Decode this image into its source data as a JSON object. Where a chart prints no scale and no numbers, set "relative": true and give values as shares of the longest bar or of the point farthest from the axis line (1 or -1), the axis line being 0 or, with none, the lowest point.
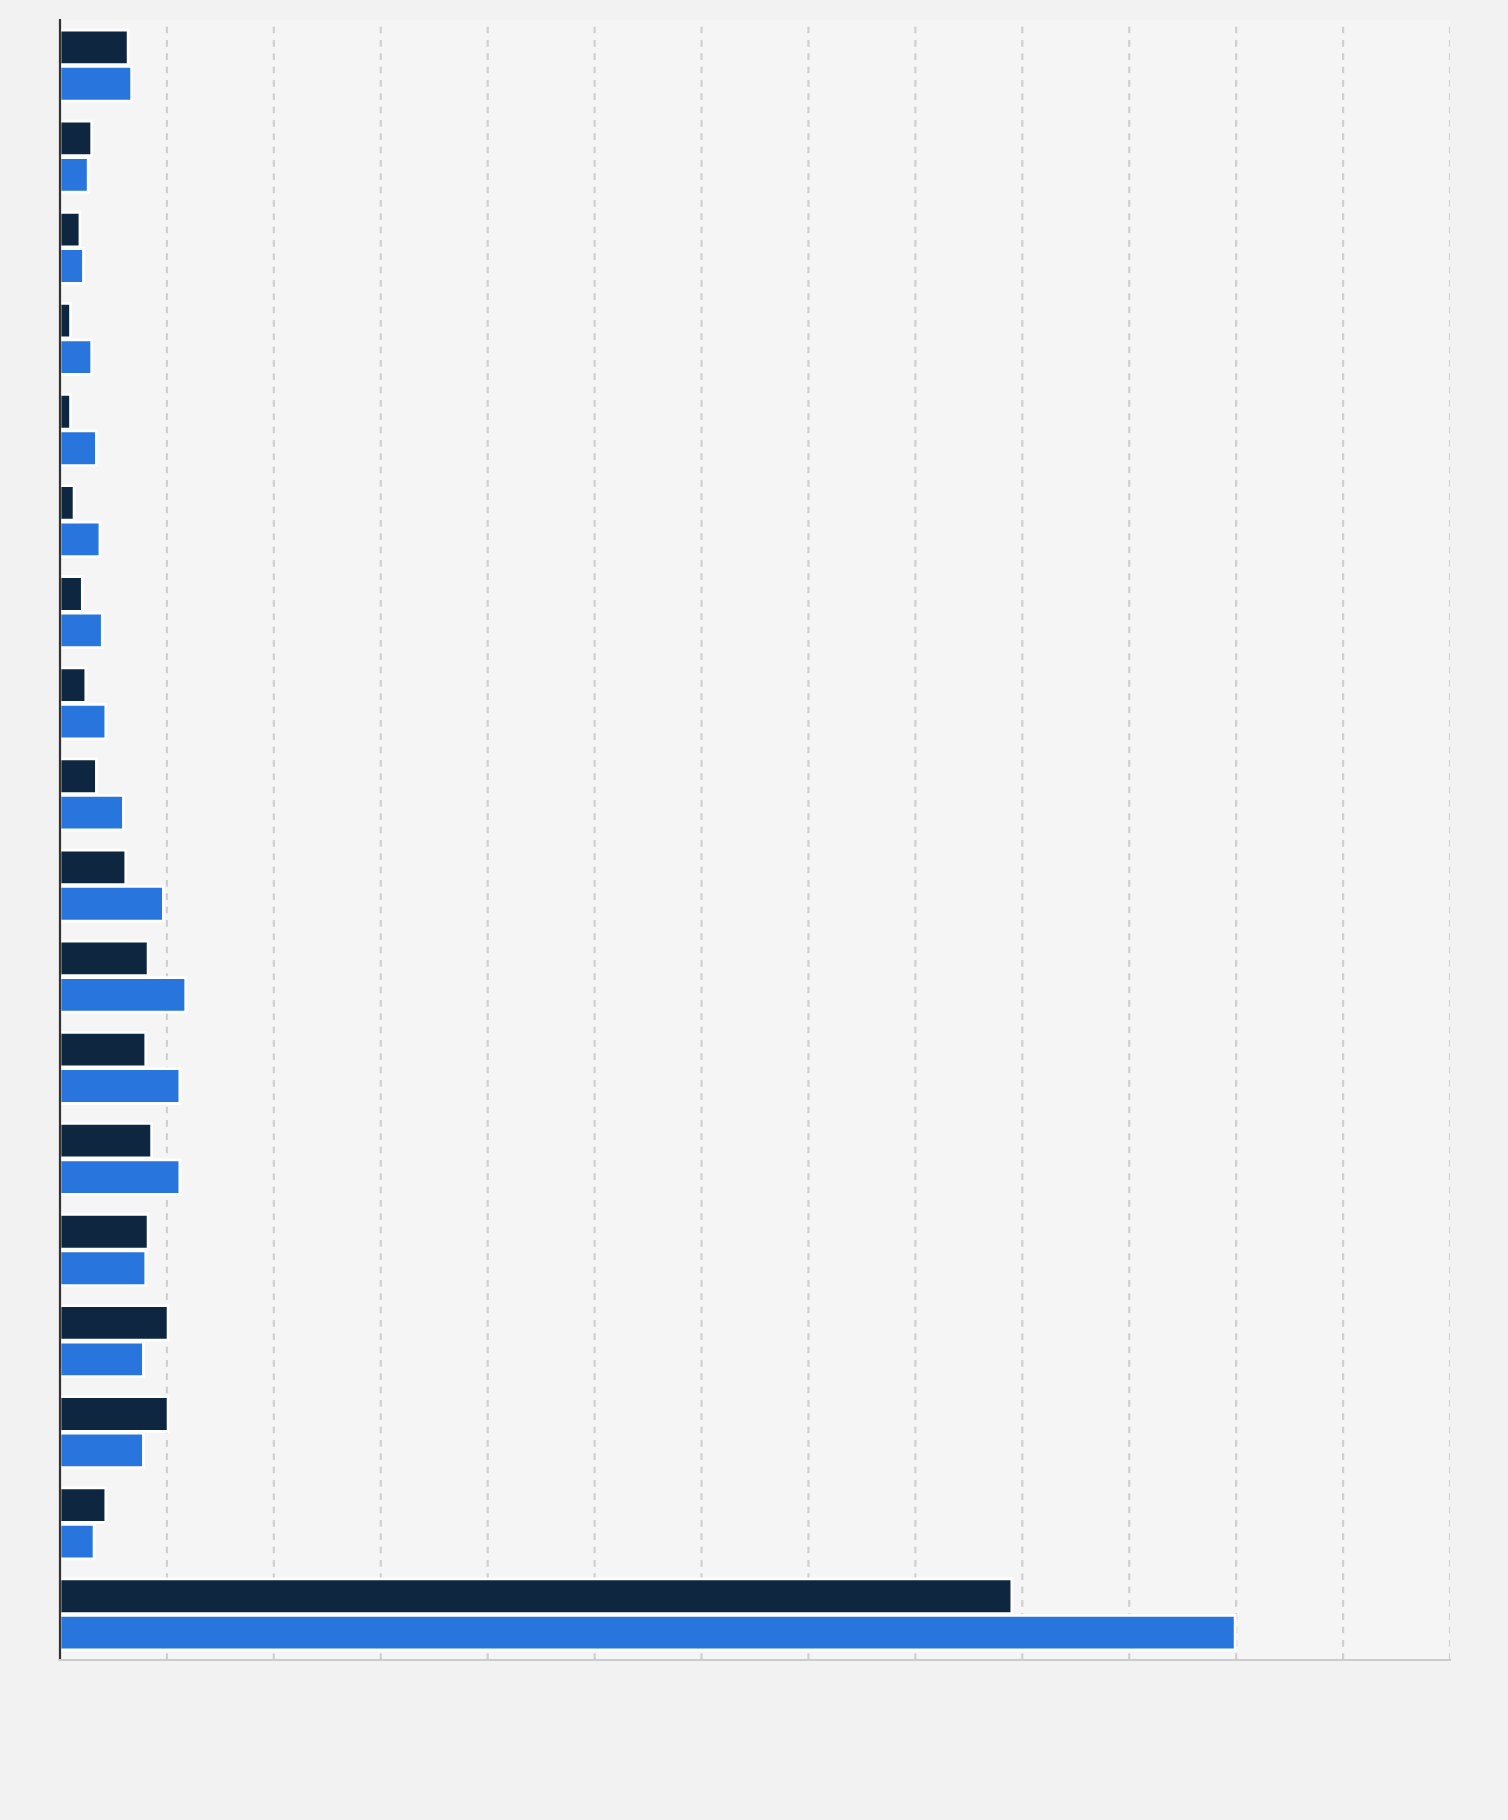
{
  "chart_data": {
    "type": "bar",
    "orientation": "horizontal",
    "relative": true,
    "tick_labels": false,
    "grid": "x",
    "categories": [
      null,
      null,
      null,
      null,
      null,
      null,
      null,
      null,
      null,
      null,
      null,
      null,
      null,
      null,
      null,
      null,
      null,
      null
    ],
    "series": [
      {
        "color": "#0f2640",
        "values": [
          0.058,
          0.027,
          0.017,
          0.009,
          0.009,
          0.012,
          0.019,
          0.022,
          0.031,
          0.056,
          0.075,
          0.073,
          0.078,
          0.075,
          0.092,
          0.092,
          0.039,
          0.81
        ]
      },
      {
        "color": "#2876dd",
        "values": [
          0.061,
          0.024,
          0.02,
          0.027,
          0.031,
          0.034,
          0.036,
          0.039,
          0.054,
          0.088,
          0.107,
          0.102,
          0.102,
          0.073,
          0.071,
          0.071,
          0.029,
          1
        ]
      }
    ]
  }
}
